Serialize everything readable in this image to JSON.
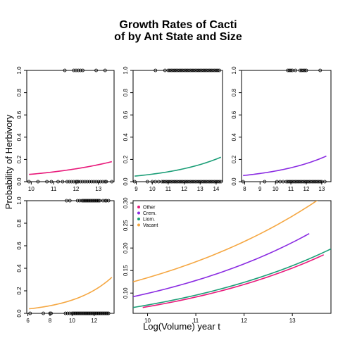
{
  "figure": {
    "title_line1": "Growth Rates of Cacti",
    "title_line2": "of by Ant State and Size",
    "xlabel": "Log(Volume) year t",
    "ylabel": "Probability of Herbivory"
  },
  "chart_data": [
    {
      "type": "scatter",
      "panel": "top-left",
      "xlim": [
        9.8,
        13.7
      ],
      "ylim": [
        0,
        1
      ],
      "xticks": [
        10,
        11,
        12,
        13
      ],
      "yticks": [
        0.0,
        0.2,
        0.4,
        0.6,
        0.8,
        1.0
      ],
      "curve_color": "#e8197a",
      "curve": {
        "x_start": 9.9,
        "x_end": 13.6,
        "y_start": 0.065,
        "y_end": 0.18
      },
      "points_y0": [
        9.9,
        10.3,
        10.7,
        10.9,
        11.2,
        11.4,
        11.6,
        11.7,
        11.8,
        11.9,
        12.0,
        12.05,
        12.1,
        12.2,
        12.3,
        12.4,
        12.5,
        12.6,
        12.7,
        12.8,
        12.9,
        13.0,
        13.1,
        13.2,
        13.3,
        13.35,
        13.6
      ],
      "points_y1": [
        11.5,
        11.9,
        12.0,
        12.1,
        12.2,
        12.3,
        12.9,
        13.3
      ]
    },
    {
      "type": "scatter",
      "panel": "top-middle",
      "xlim": [
        8.8,
        14.4
      ],
      "ylim": [
        0,
        1
      ],
      "xticks": [
        9,
        10,
        11,
        12,
        13,
        14
      ],
      "yticks": [
        0.0,
        0.2,
        0.4,
        0.6,
        0.8,
        1.0
      ],
      "curve_color": "#1b9e77",
      "curve": {
        "x_start": 8.9,
        "x_end": 14.3,
        "y_start": 0.05,
        "y_end": 0.22
      },
      "points_y0": [
        8.9,
        9.7,
        10.0,
        10.2,
        10.4,
        10.6,
        10.7,
        10.8,
        10.9,
        11.0,
        11.1,
        11.2,
        11.3,
        11.4,
        11.5,
        11.6,
        11.7,
        11.8,
        11.9,
        12.0,
        12.1,
        12.2,
        12.3,
        12.4,
        12.5,
        12.6,
        12.7,
        12.8,
        12.9,
        13.0,
        13.1,
        13.2,
        13.3,
        13.4,
        13.5,
        13.6,
        13.7,
        13.8,
        13.9,
        14.0,
        14.1,
        14.2,
        14.3
      ],
      "points_y1": [
        10.2,
        10.8,
        11.0,
        11.1,
        11.2,
        11.3,
        11.4,
        11.5,
        11.6,
        11.7,
        11.8,
        11.9,
        12.0,
        12.1,
        12.2,
        12.3,
        12.4,
        12.5,
        12.6,
        12.7,
        12.8,
        12.9,
        13.0,
        13.1,
        13.2,
        13.3,
        13.4,
        13.5,
        13.6,
        13.7,
        13.8,
        13.9,
        14.0,
        14.1,
        14.2
      ]
    },
    {
      "type": "scatter",
      "panel": "top-right",
      "xlim": [
        7.8,
        13.6
      ],
      "ylim": [
        0,
        1
      ],
      "xticks": [
        8,
        9,
        10,
        11,
        12,
        13
      ],
      "yticks": [
        0.0,
        0.2,
        0.4,
        0.6,
        0.8,
        1.0
      ],
      "curve_color": "#8a2be2",
      "curve": {
        "x_start": 7.9,
        "x_end": 13.3,
        "y_start": 0.055,
        "y_end": 0.23
      },
      "points_y0": [
        7.9,
        9.3,
        10.1,
        10.3,
        10.5,
        10.7,
        10.8,
        10.9,
        11.0,
        11.1,
        11.2,
        11.3,
        11.4,
        11.5,
        11.6,
        11.7,
        11.8,
        11.9,
        12.0,
        12.1,
        12.2,
        12.3,
        12.4,
        12.5,
        12.6,
        12.7,
        12.8,
        12.9,
        13.0,
        13.2
      ],
      "points_y1": [
        10.8,
        10.9,
        11.0,
        11.1,
        11.3,
        11.6,
        11.7,
        11.8,
        11.9,
        12.0,
        12.9
      ]
    },
    {
      "type": "scatter",
      "panel": "bottom-left",
      "xlim": [
        5.9,
        13.8
      ],
      "ylim": [
        0,
        1
      ],
      "xticks": [
        6,
        8,
        10,
        12
      ],
      "yticks": [
        0.0,
        0.2,
        0.4,
        0.6,
        0.8,
        1.0
      ],
      "curve_color": "#f5a742",
      "curve": {
        "x_start": 6.1,
        "x_end": 13.6,
        "y_start": 0.04,
        "y_end": 0.32
      },
      "points_y0": [
        6.2,
        7.4,
        8.0,
        8.1,
        9.4,
        9.6,
        9.8,
        10.0,
        10.1,
        10.2,
        10.3,
        10.4,
        10.5,
        10.6,
        10.7,
        10.8,
        10.9,
        11.0,
        11.1,
        11.2,
        11.3,
        11.4,
        11.5,
        11.6,
        11.7,
        11.8,
        11.9,
        12.0,
        12.1,
        12.2,
        12.3,
        12.4,
        12.5,
        12.6,
        12.7,
        12.8,
        12.9,
        13.0,
        13.1,
        13.2,
        13.3
      ],
      "points_y1": [
        9.5,
        9.8,
        10.5,
        10.7,
        10.9,
        11.0,
        11.1,
        11.2,
        11.3,
        11.4,
        11.5,
        11.6,
        11.7,
        11.8,
        11.9,
        12.0,
        12.1,
        12.2,
        12.3,
        12.4,
        12.5,
        12.8,
        13.0,
        13.1,
        13.3
      ]
    },
    {
      "type": "line",
      "panel": "bottom-right",
      "xlim": [
        9.7,
        13.8
      ],
      "ylim": [
        0.055,
        0.305
      ],
      "xticks": [
        10,
        11,
        12,
        13
      ],
      "yticks": [
        0.1,
        0.15,
        0.2,
        0.25,
        0.3
      ],
      "legend_position": "top-left",
      "series": [
        {
          "name": "Other",
          "color": "#e8197a",
          "x_start": 9.9,
          "x_end": 13.65,
          "y_start": 0.068,
          "y_end": 0.185
        },
        {
          "name": "Crem.",
          "color": "#8a2be2",
          "x_start": 9.7,
          "x_end": 13.35,
          "y_start": 0.092,
          "y_end": 0.232
        },
        {
          "name": "Liom.",
          "color": "#1b9e77",
          "x_start": 9.7,
          "x_end": 13.8,
          "y_start": 0.068,
          "y_end": 0.198
        },
        {
          "name": "Vacant",
          "color": "#f5a742",
          "x_start": 9.7,
          "x_end": 13.55,
          "y_start": 0.125,
          "y_end": 0.308
        }
      ]
    }
  ]
}
